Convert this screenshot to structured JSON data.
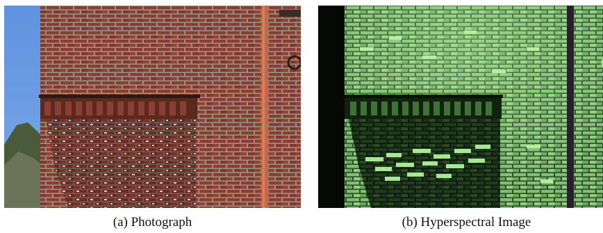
{
  "figure": {
    "panels": [
      {
        "caption": "(a) Photograph",
        "image": "brick-building-photograph",
        "colors": {
          "sky": "#6b9be0",
          "brick": "#8c3e2e",
          "mortar": "#a08a84",
          "pipe": "#c56848",
          "foliage": "#4c5a3c"
        }
      },
      {
        "caption": "(b) Hyperspectral Image",
        "image": "brick-building-hyperspectral",
        "colors": {
          "background": "#050805",
          "brick": "#7fc072",
          "brick_bright": "#b4ef9c",
          "shadow": "#1f3c1c",
          "pipe": "#2a1f2e"
        }
      }
    ]
  }
}
